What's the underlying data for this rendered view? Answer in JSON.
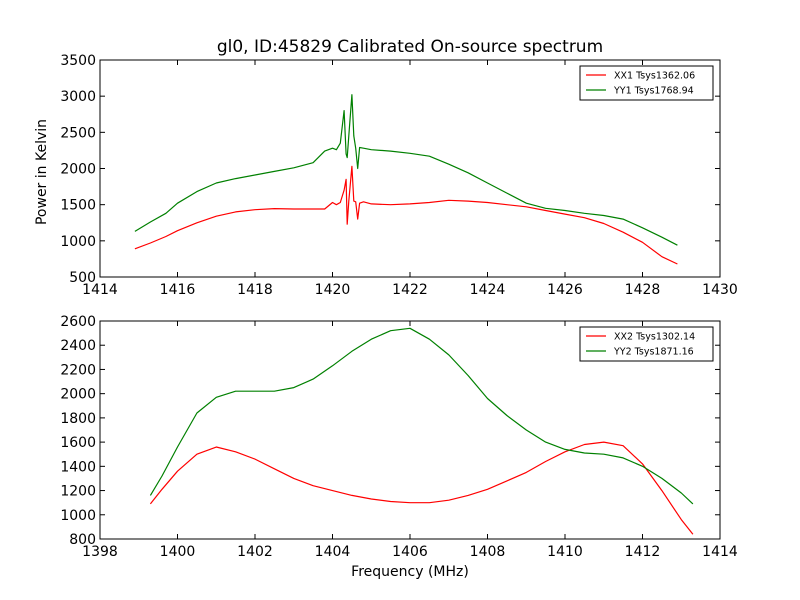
{
  "figure": {
    "title": "gl0, ID:45829 Calibrated On-source spectrum",
    "ylabel": "Power in Kelvin",
    "xlabel": "Frequency (MHz)"
  },
  "chart_data": [
    {
      "type": "line",
      "title": "gl0, ID:45829 Calibrated On-source spectrum",
      "xlabel": "",
      "ylabel": "Power in Kelvin",
      "xlim": [
        1414,
        1430
      ],
      "ylim": [
        500,
        3500
      ],
      "xticks": [
        1414,
        1416,
        1418,
        1420,
        1422,
        1424,
        1426,
        1428,
        1430
      ],
      "yticks": [
        500,
        1000,
        1500,
        2000,
        2500,
        3000,
        3500
      ],
      "grid": false,
      "legend_position": "top-right",
      "series": [
        {
          "name": "XX1 Tsys1362.06",
          "color": "#ff0000",
          "points": [
            [
              1414.9,
              890
            ],
            [
              1415.3,
              970
            ],
            [
              1415.7,
              1060
            ],
            [
              1416.0,
              1140
            ],
            [
              1416.5,
              1250
            ],
            [
              1417.0,
              1340
            ],
            [
              1417.5,
              1400
            ],
            [
              1418.0,
              1430
            ],
            [
              1418.5,
              1445
            ],
            [
              1419.0,
              1440
            ],
            [
              1419.5,
              1440
            ],
            [
              1419.8,
              1440
            ],
            [
              1420.0,
              1530
            ],
            [
              1420.1,
              1500
            ],
            [
              1420.2,
              1530
            ],
            [
              1420.3,
              1700
            ],
            [
              1420.35,
              1850
            ],
            [
              1420.38,
              1230
            ],
            [
              1420.42,
              1550
            ],
            [
              1420.5,
              2030
            ],
            [
              1420.55,
              1550
            ],
            [
              1420.6,
              1540
            ],
            [
              1420.65,
              1300
            ],
            [
              1420.7,
              1520
            ],
            [
              1420.8,
              1540
            ],
            [
              1421.0,
              1510
            ],
            [
              1421.5,
              1500
            ],
            [
              1422.0,
              1510
            ],
            [
              1422.5,
              1530
            ],
            [
              1423.0,
              1560
            ],
            [
              1423.5,
              1550
            ],
            [
              1424.0,
              1530
            ],
            [
              1424.5,
              1500
            ],
            [
              1425.0,
              1470
            ],
            [
              1425.5,
              1420
            ],
            [
              1426.0,
              1370
            ],
            [
              1426.5,
              1320
            ],
            [
              1427.0,
              1240
            ],
            [
              1427.5,
              1120
            ],
            [
              1428.0,
              980
            ],
            [
              1428.5,
              780
            ],
            [
              1428.9,
              680
            ]
          ]
        },
        {
          "name": "YY1 Tsys1768.94",
          "color": "#008000",
          "points": [
            [
              1414.9,
              1130
            ],
            [
              1415.3,
              1260
            ],
            [
              1415.7,
              1380
            ],
            [
              1416.0,
              1520
            ],
            [
              1416.5,
              1680
            ],
            [
              1417.0,
              1800
            ],
            [
              1417.5,
              1860
            ],
            [
              1418.0,
              1910
            ],
            [
              1418.5,
              1960
            ],
            [
              1419.0,
              2010
            ],
            [
              1419.5,
              2080
            ],
            [
              1419.8,
              2240
            ],
            [
              1420.0,
              2280
            ],
            [
              1420.1,
              2260
            ],
            [
              1420.2,
              2350
            ],
            [
              1420.3,
              2800
            ],
            [
              1420.35,
              2200
            ],
            [
              1420.38,
              2150
            ],
            [
              1420.42,
              2450
            ],
            [
              1420.5,
              3020
            ],
            [
              1420.55,
              2450
            ],
            [
              1420.6,
              2280
            ],
            [
              1420.65,
              2000
            ],
            [
              1420.7,
              2290
            ],
            [
              1420.8,
              2280
            ],
            [
              1421.0,
              2260
            ],
            [
              1421.5,
              2240
            ],
            [
              1422.0,
              2210
            ],
            [
              1422.5,
              2170
            ],
            [
              1423.0,
              2060
            ],
            [
              1423.5,
              1940
            ],
            [
              1424.0,
              1800
            ],
            [
              1424.5,
              1660
            ],
            [
              1425.0,
              1520
            ],
            [
              1425.5,
              1450
            ],
            [
              1426.0,
              1420
            ],
            [
              1426.5,
              1380
            ],
            [
              1427.0,
              1350
            ],
            [
              1427.5,
              1300
            ],
            [
              1428.0,
              1180
            ],
            [
              1428.5,
              1050
            ],
            [
              1428.9,
              940
            ]
          ]
        }
      ]
    },
    {
      "type": "line",
      "title": "",
      "xlabel": "Frequency (MHz)",
      "ylabel": "",
      "xlim": [
        1398,
        1414
      ],
      "ylim": [
        800,
        2600
      ],
      "xticks": [
        1398,
        1400,
        1402,
        1404,
        1406,
        1408,
        1410,
        1412,
        1414
      ],
      "yticks": [
        800,
        1000,
        1200,
        1400,
        1600,
        1800,
        2000,
        2200,
        2400,
        2600
      ],
      "grid": false,
      "legend_position": "top-right",
      "series": [
        {
          "name": "XX2 Tsys1302.14",
          "color": "#ff0000",
          "points": [
            [
              1399.3,
              1090
            ],
            [
              1399.6,
              1210
            ],
            [
              1400.0,
              1360
            ],
            [
              1400.5,
              1500
            ],
            [
              1401.0,
              1560
            ],
            [
              1401.5,
              1520
            ],
            [
              1402.0,
              1460
            ],
            [
              1402.5,
              1380
            ],
            [
              1403.0,
              1300
            ],
            [
              1403.5,
              1240
            ],
            [
              1404.0,
              1200
            ],
            [
              1404.5,
              1160
            ],
            [
              1405.0,
              1130
            ],
            [
              1405.5,
              1110
            ],
            [
              1406.0,
              1100
            ],
            [
              1406.5,
              1100
            ],
            [
              1407.0,
              1120
            ],
            [
              1407.5,
              1160
            ],
            [
              1408.0,
              1210
            ],
            [
              1408.5,
              1280
            ],
            [
              1409.0,
              1350
            ],
            [
              1409.5,
              1440
            ],
            [
              1410.0,
              1520
            ],
            [
              1410.5,
              1580
            ],
            [
              1411.0,
              1600
            ],
            [
              1411.5,
              1570
            ],
            [
              1412.0,
              1420
            ],
            [
              1412.5,
              1200
            ],
            [
              1413.0,
              960
            ],
            [
              1413.3,
              840
            ]
          ]
        },
        {
          "name": "YY2 Tsys1871.16",
          "color": "#008000",
          "points": [
            [
              1399.3,
              1160
            ],
            [
              1399.6,
              1320
            ],
            [
              1400.0,
              1560
            ],
            [
              1400.5,
              1840
            ],
            [
              1401.0,
              1970
            ],
            [
              1401.5,
              2020
            ],
            [
              1402.0,
              2020
            ],
            [
              1402.5,
              2020
            ],
            [
              1403.0,
              2050
            ],
            [
              1403.5,
              2120
            ],
            [
              1404.0,
              2230
            ],
            [
              1404.5,
              2350
            ],
            [
              1405.0,
              2450
            ],
            [
              1405.5,
              2520
            ],
            [
              1406.0,
              2540
            ],
            [
              1406.5,
              2450
            ],
            [
              1407.0,
              2320
            ],
            [
              1407.5,
              2150
            ],
            [
              1408.0,
              1960
            ],
            [
              1408.5,
              1820
            ],
            [
              1409.0,
              1700
            ],
            [
              1409.5,
              1600
            ],
            [
              1410.0,
              1540
            ],
            [
              1410.5,
              1510
            ],
            [
              1411.0,
              1500
            ],
            [
              1411.5,
              1470
            ],
            [
              1412.0,
              1400
            ],
            [
              1412.5,
              1300
            ],
            [
              1413.0,
              1180
            ],
            [
              1413.3,
              1090
            ]
          ]
        }
      ]
    }
  ]
}
